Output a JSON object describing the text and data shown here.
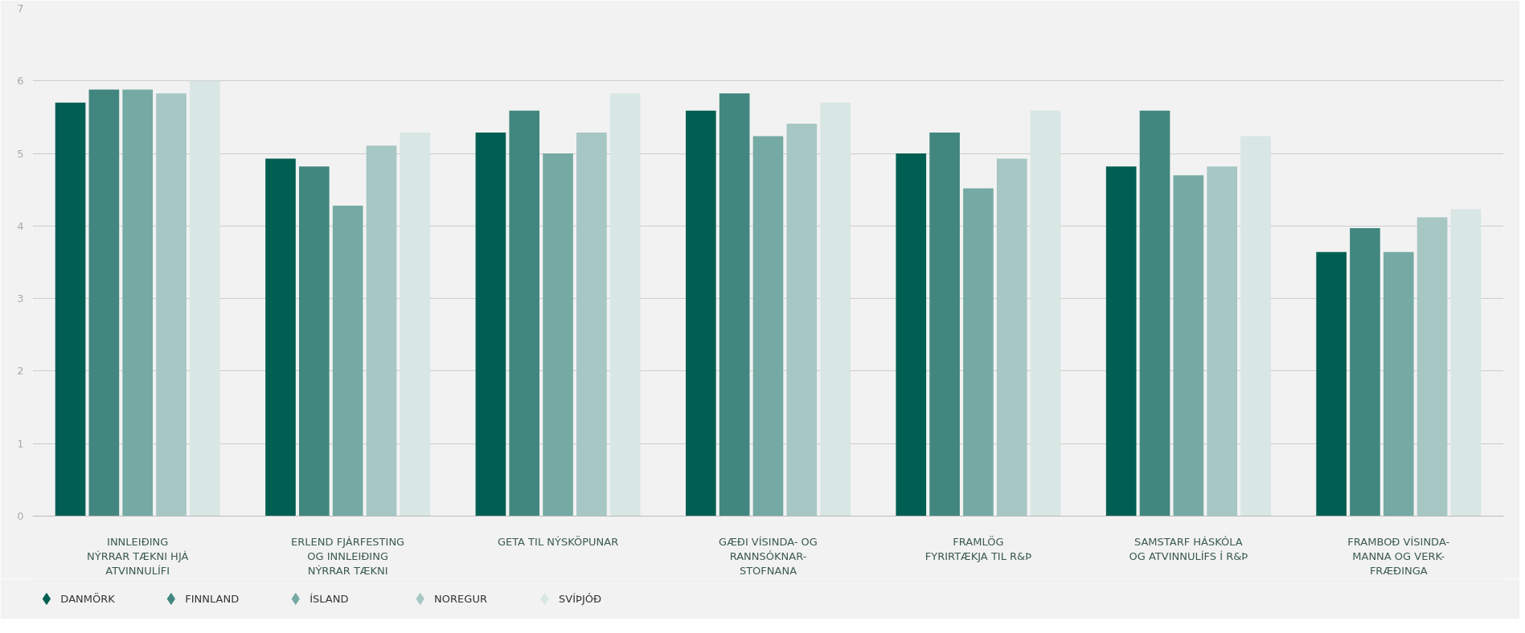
{
  "chart_data": {
    "type": "bar",
    "categories": [
      "INNLEIÐING\nNÝRRAR TÆKNI HJÁ\nATVINNULÍFI",
      "ERLEND FJÁRFESTING\nOG INNLEIÐING\nNÝRRAR TÆKNI",
      "GETA TIL NÝSKÖPUNAR",
      "GÆÐI VÍSINDA- OG\nRANNSÓKNAR-\nSTOFNANA",
      "FRAMLÖG\nFYRIRTÆKJA TIL R&Þ",
      "SAMSTARF HÁSKÓLA\nOG ATVINNULÍFS Í R&Þ",
      "FRAMBOÐ VÍSINDA-\nMANNA OG VERK-\nFRÆÐINGA"
    ],
    "series": [
      {
        "name": "DANMÖRK",
        "color": "#005f52",
        "values": [
          5.7,
          4.93,
          5.29,
          5.59,
          5.0,
          4.82,
          3.64
        ]
      },
      {
        "name": "FINNLAND",
        "color": "#42877f",
        "values": [
          5.88,
          4.82,
          5.59,
          5.83,
          5.29,
          5.59,
          3.97
        ]
      },
      {
        "name": "ÍSLAND",
        "color": "#74aaa3",
        "values": [
          5.88,
          4.28,
          5.0,
          5.24,
          4.52,
          4.7,
          3.64
        ]
      },
      {
        "name": "NOREGUR",
        "color": "#a6c7c4",
        "values": [
          5.83,
          5.11,
          5.29,
          5.41,
          4.93,
          4.82,
          4.12
        ]
      },
      {
        "name": "SVÍÞJÓÐ",
        "color": "#d8e6e4",
        "values": [
          6.0,
          5.29,
          5.83,
          5.7,
          5.59,
          5.24,
          4.23
        ]
      }
    ],
    "ylim": [
      0,
      7
    ],
    "yticks": [
      0,
      1,
      2,
      3,
      4,
      5,
      6,
      7
    ],
    "grid": "y",
    "legend": "bottom",
    "marker": "diamond"
  }
}
